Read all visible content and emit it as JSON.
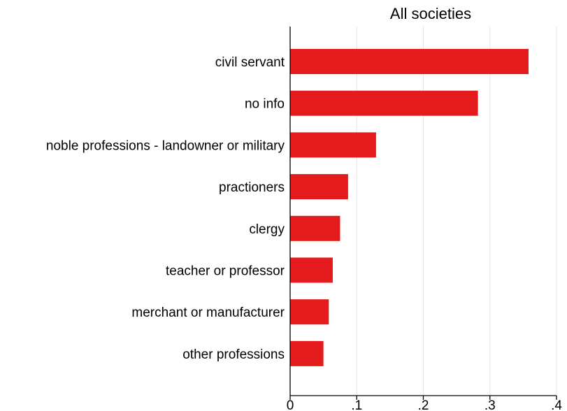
{
  "chart_data": {
    "type": "bar",
    "orientation": "horizontal",
    "title": "All societies",
    "xlabel": "",
    "ylabel": "",
    "categories": [
      "civil servant",
      "no info",
      "noble professions - landowner or military",
      "practioners",
      "clergy",
      "teacher or professor",
      "merchant or manufacturer",
      "other professions"
    ],
    "values": [
      0.358,
      0.282,
      0.129,
      0.087,
      0.075,
      0.064,
      0.058,
      0.05
    ],
    "xlim": [
      0,
      0.4
    ],
    "xticks": [
      0,
      0.1,
      0.2,
      0.3,
      0.4
    ],
    "xtick_labels": [
      "0",
      ".1",
      ".2",
      ".3",
      ".4"
    ],
    "grid": "vertical",
    "bar_color": "#e41a1c",
    "legend": "none"
  }
}
